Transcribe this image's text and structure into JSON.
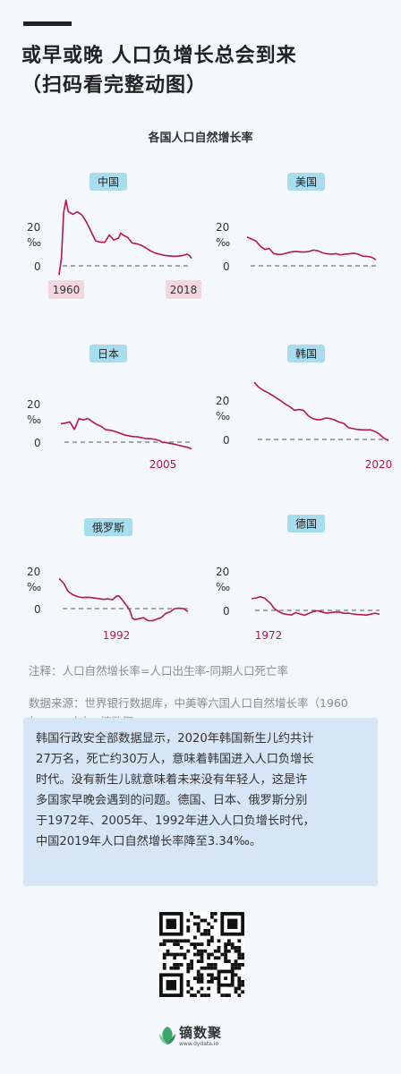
{
  "header": {
    "title_line1": "或早或晚  人口负增长总会到来",
    "title_line2": "（扫码看完整动图）"
  },
  "chart_title": "各国人口自然增长率",
  "chart_data": [
    {
      "type": "line",
      "name": "中国",
      "ytick_labels": [
        "20",
        "‰",
        "0"
      ],
      "x_labels": [
        "1960",
        "2018"
      ],
      "ylim": [
        -5,
        35
      ],
      "x": [
        1960,
        1961,
        1962,
        1963,
        1964,
        1966,
        1968,
        1970,
        1972,
        1974,
        1976,
        1978,
        1980,
        1982,
        1984,
        1986,
        1987,
        1988,
        1990,
        1992,
        1994,
        1996,
        1998,
        2000,
        2002,
        2004,
        2006,
        2008,
        2010,
        2012,
        2014,
        2016,
        2017,
        2018
      ],
      "y": [
        -4.6,
        3.8,
        27.0,
        33.3,
        27.6,
        26.2,
        27.4,
        25.8,
        22.2,
        17.5,
        12.7,
        12.0,
        11.9,
        15.7,
        13.1,
        14.1,
        16.6,
        15.7,
        14.4,
        11.6,
        11.2,
        10.4,
        9.1,
        7.6,
        6.5,
        5.9,
        5.3,
        5.1,
        4.8,
        4.9,
        5.2,
        5.9,
        5.3,
        3.8
      ]
    },
    {
      "type": "line",
      "name": "美国",
      "ytick_labels": [
        "20",
        "‰",
        "0"
      ],
      "ylim": [
        -5,
        35
      ],
      "x": [
        1960,
        1962,
        1964,
        1966,
        1968,
        1970,
        1972,
        1974,
        1976,
        1978,
        1980,
        1982,
        1984,
        1986,
        1988,
        1990,
        1992,
        1994,
        1996,
        1998,
        2000,
        2002,
        2004,
        2006,
        2008,
        2010,
        2012,
        2014,
        2016,
        2018
      ],
      "y": [
        14.6,
        13.6,
        12.6,
        9.9,
        8.3,
        8.8,
        6.2,
        5.8,
        5.9,
        6.5,
        7.1,
        7.3,
        7.0,
        7.0,
        7.3,
        8.0,
        7.6,
        6.6,
        6.1,
        5.9,
        6.2,
        5.6,
        5.9,
        6.1,
        6.4,
        5.9,
        4.9,
        4.8,
        4.4,
        3.1
      ]
    },
    {
      "type": "line",
      "name": "日本",
      "ytick_labels": [
        "20",
        "‰",
        "0"
      ],
      "x_labels": [
        "2005"
      ],
      "ylim": [
        -5,
        35
      ],
      "x": [
        1960,
        1962,
        1964,
        1966,
        1968,
        1970,
        1972,
        1974,
        1976,
        1978,
        1980,
        1982,
        1984,
        1986,
        1988,
        1990,
        1992,
        1994,
        1996,
        1998,
        2000,
        2002,
        2004,
        2005,
        2006,
        2008,
        2010,
        2012,
        2014,
        2016,
        2018
      ],
      "y": [
        9.6,
        9.9,
        10.5,
        6.6,
        12.2,
        11.6,
        12.3,
        10.6,
        9.1,
        8.1,
        6.4,
        6.2,
        5.6,
        4.8,
        3.8,
        3.3,
        2.9,
        2.8,
        2.3,
        1.8,
        1.8,
        1.4,
        0.7,
        -0.2,
        0.0,
        -0.6,
        -1.0,
        -1.6,
        -2.1,
        -2.6,
        -3.5
      ]
    },
    {
      "type": "line",
      "name": "韩国",
      "ytick_labels": [
        "20",
        "‰",
        "0"
      ],
      "x_labels": [
        "2020"
      ],
      "ylim": [
        -5,
        35
      ],
      "x": [
        1960,
        1962,
        1964,
        1966,
        1968,
        1970,
        1972,
        1974,
        1976,
        1978,
        1980,
        1982,
        1984,
        1986,
        1988,
        1990,
        1992,
        1994,
        1996,
        1998,
        2000,
        2002,
        2004,
        2006,
        2008,
        2010,
        2012,
        2014,
        2016,
        2018,
        2020
      ],
      "y": [
        29.0,
        26.5,
        25.0,
        23.8,
        22.5,
        21.0,
        19.6,
        17.8,
        16.6,
        14.8,
        15.2,
        14.8,
        12.2,
        10.7,
        10.1,
        10.1,
        10.9,
        10.6,
        9.8,
        8.8,
        8.2,
        6.1,
        5.5,
        5.1,
        4.9,
        4.8,
        4.9,
        4.0,
        2.7,
        0.6,
        -0.6
      ]
    },
    {
      "type": "line",
      "name": "俄罗斯",
      "ytick_labels": [
        "20",
        "‰",
        "0"
      ],
      "x_labels": [
        "1992"
      ],
      "ylim": [
        -10,
        30
      ],
      "x": [
        1960,
        1962,
        1964,
        1966,
        1968,
        1970,
        1972,
        1974,
        1976,
        1978,
        1980,
        1982,
        1984,
        1986,
        1987,
        1988,
        1990,
        1991,
        1992,
        1993,
        1994,
        1996,
        1998,
        2000,
        2002,
        2004,
        2006,
        2008,
        2010,
        2012,
        2014,
        2016,
        2018
      ],
      "y": [
        16.0,
        13.6,
        9.3,
        7.5,
        6.5,
        5.9,
        6.0,
        5.9,
        5.6,
        5.3,
        4.9,
        5.2,
        4.7,
        6.7,
        6.7,
        5.3,
        2.2,
        0.7,
        -1.5,
        -5.1,
        -5.9,
        -5.4,
        -4.8,
        -6.4,
        -6.5,
        -5.6,
        -4.8,
        -2.5,
        -1.7,
        0.0,
        0.2,
        -0.0,
        -1.6
      ]
    },
    {
      "type": "line",
      "name": "德国",
      "ytick_labels": [
        "20",
        "‰",
        "0"
      ],
      "x_labels": [
        "1972"
      ],
      "ylim": [
        -5,
        35
      ],
      "x": [
        1960,
        1962,
        1964,
        1966,
        1968,
        1969,
        1970,
        1971,
        1972,
        1974,
        1976,
        1978,
        1980,
        1982,
        1984,
        1986,
        1988,
        1990,
        1992,
        1994,
        1996,
        1998,
        2000,
        2002,
        2004,
        2006,
        2008,
        2010,
        2012,
        2014,
        2016,
        2018
      ],
      "y": [
        5.9,
        6.3,
        6.9,
        6.2,
        4.2,
        3.0,
        1.3,
        0.4,
        -0.4,
        -1.6,
        -2.0,
        -2.3,
        -1.2,
        -1.8,
        -2.5,
        -1.5,
        -0.6,
        -0.2,
        -0.8,
        -1.4,
        -1.1,
        -0.8,
        -0.9,
        -1.5,
        -1.4,
        -1.8,
        -2.1,
        -2.2,
        -2.4,
        -1.9,
        -1.4,
        -2.0
      ]
    }
  ],
  "note": "注释：人口自然增长率=人口出生率-同期人口死亡率",
  "source_line1": "数据来源：世界银行数据库，中美等六国人口自然增长率（1960",
  "source_line2": "年-2018年），镝数聚",
  "info": {
    "line1": "韩国行政安全部数据显示，2020年韩国新生儿约共计",
    "line2": "27万名，死亡约30万人，意味着韩国进入人口负增长",
    "line3": "时代。没有新生儿就意味着未来没有年轻人，这是许",
    "line4": "多国家早晚会遇到的问题。德国、日本、俄罗斯分别",
    "line5": "于1972年、2005年、1992年进入人口负增长时代，",
    "line6": "中国2019年人口自然增长率降至3.34‰。"
  },
  "brand": {
    "name": "镝数聚",
    "url": "www.dydata.io"
  },
  "colors": {
    "line": "#b5174f",
    "label_bg": "#a8dcef",
    "info_bg": "#d6e6f7"
  }
}
